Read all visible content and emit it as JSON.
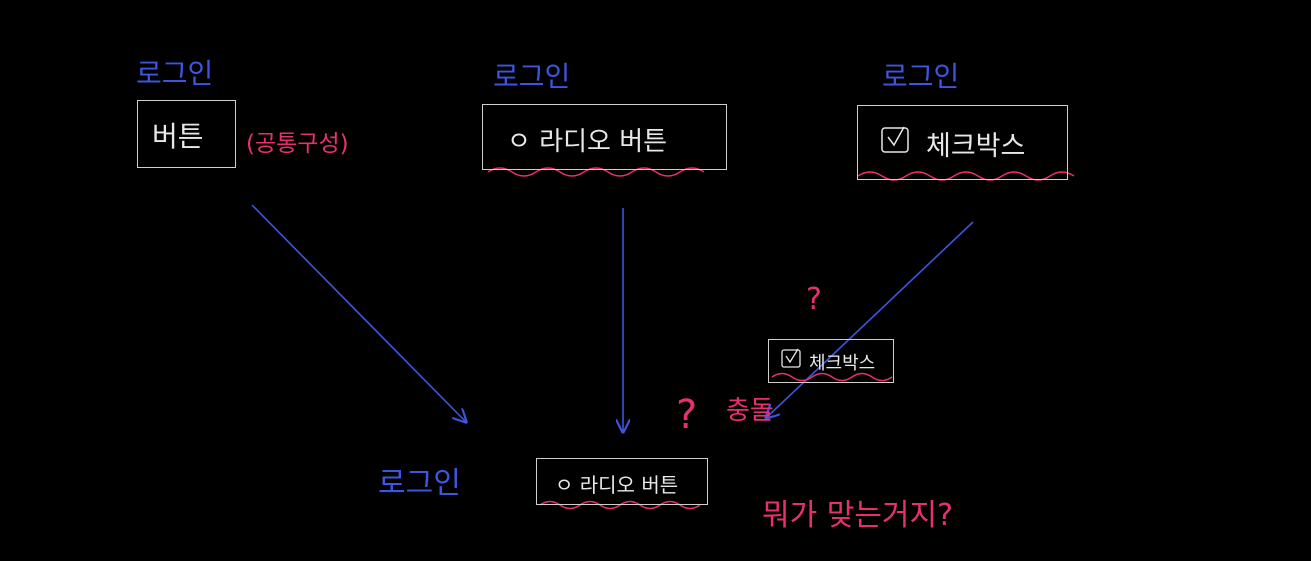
{
  "colors": {
    "background": "#000000",
    "blue": "#3d55e0",
    "pink": "#e8306e",
    "box": "#cfcfcf"
  },
  "top_row": [
    {
      "title": "로그인",
      "component": "버튼",
      "note": "(공통구성)"
    },
    {
      "title": "로그인",
      "component": "ㅇ 라디오 버튼"
    },
    {
      "title": "로그인",
      "component": "체크박스"
    }
  ],
  "middle": {
    "question": "?",
    "component": "체크박스"
  },
  "bottom": {
    "title": "로그인",
    "component": "ㅇ 라디오 버튼",
    "question": "?",
    "conflict": "충돌",
    "remark": "뭐가 맞는거지?"
  }
}
